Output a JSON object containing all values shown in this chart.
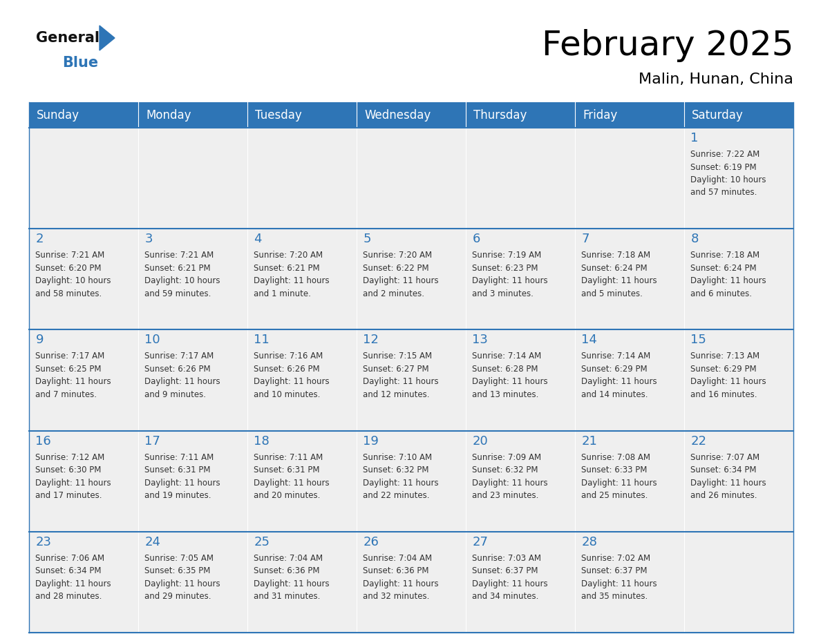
{
  "title": "February 2025",
  "subtitle": "Malin, Hunan, China",
  "header_color": "#2E75B6",
  "header_text_color": "#FFFFFF",
  "cell_bg_color": "#EFEFEF",
  "cell_bg_empty": "#E8E8E8",
  "day_number_color": "#2E75B6",
  "text_color": "#333333",
  "line_color": "#2E75B6",
  "border_color": "#2E75B6",
  "days_of_week": [
    "Sunday",
    "Monday",
    "Tuesday",
    "Wednesday",
    "Thursday",
    "Friday",
    "Saturday"
  ],
  "weeks": [
    [
      {
        "day": null,
        "info": null
      },
      {
        "day": null,
        "info": null
      },
      {
        "day": null,
        "info": null
      },
      {
        "day": null,
        "info": null
      },
      {
        "day": null,
        "info": null
      },
      {
        "day": null,
        "info": null
      },
      {
        "day": 1,
        "info": "Sunrise: 7:22 AM\nSunset: 6:19 PM\nDaylight: 10 hours\nand 57 minutes."
      }
    ],
    [
      {
        "day": 2,
        "info": "Sunrise: 7:21 AM\nSunset: 6:20 PM\nDaylight: 10 hours\nand 58 minutes."
      },
      {
        "day": 3,
        "info": "Sunrise: 7:21 AM\nSunset: 6:21 PM\nDaylight: 10 hours\nand 59 minutes."
      },
      {
        "day": 4,
        "info": "Sunrise: 7:20 AM\nSunset: 6:21 PM\nDaylight: 11 hours\nand 1 minute."
      },
      {
        "day": 5,
        "info": "Sunrise: 7:20 AM\nSunset: 6:22 PM\nDaylight: 11 hours\nand 2 minutes."
      },
      {
        "day": 6,
        "info": "Sunrise: 7:19 AM\nSunset: 6:23 PM\nDaylight: 11 hours\nand 3 minutes."
      },
      {
        "day": 7,
        "info": "Sunrise: 7:18 AM\nSunset: 6:24 PM\nDaylight: 11 hours\nand 5 minutes."
      },
      {
        "day": 8,
        "info": "Sunrise: 7:18 AM\nSunset: 6:24 PM\nDaylight: 11 hours\nand 6 minutes."
      }
    ],
    [
      {
        "day": 9,
        "info": "Sunrise: 7:17 AM\nSunset: 6:25 PM\nDaylight: 11 hours\nand 7 minutes."
      },
      {
        "day": 10,
        "info": "Sunrise: 7:17 AM\nSunset: 6:26 PM\nDaylight: 11 hours\nand 9 minutes."
      },
      {
        "day": 11,
        "info": "Sunrise: 7:16 AM\nSunset: 6:26 PM\nDaylight: 11 hours\nand 10 minutes."
      },
      {
        "day": 12,
        "info": "Sunrise: 7:15 AM\nSunset: 6:27 PM\nDaylight: 11 hours\nand 12 minutes."
      },
      {
        "day": 13,
        "info": "Sunrise: 7:14 AM\nSunset: 6:28 PM\nDaylight: 11 hours\nand 13 minutes."
      },
      {
        "day": 14,
        "info": "Sunrise: 7:14 AM\nSunset: 6:29 PM\nDaylight: 11 hours\nand 14 minutes."
      },
      {
        "day": 15,
        "info": "Sunrise: 7:13 AM\nSunset: 6:29 PM\nDaylight: 11 hours\nand 16 minutes."
      }
    ],
    [
      {
        "day": 16,
        "info": "Sunrise: 7:12 AM\nSunset: 6:30 PM\nDaylight: 11 hours\nand 17 minutes."
      },
      {
        "day": 17,
        "info": "Sunrise: 7:11 AM\nSunset: 6:31 PM\nDaylight: 11 hours\nand 19 minutes."
      },
      {
        "day": 18,
        "info": "Sunrise: 7:11 AM\nSunset: 6:31 PM\nDaylight: 11 hours\nand 20 minutes."
      },
      {
        "day": 19,
        "info": "Sunrise: 7:10 AM\nSunset: 6:32 PM\nDaylight: 11 hours\nand 22 minutes."
      },
      {
        "day": 20,
        "info": "Sunrise: 7:09 AM\nSunset: 6:32 PM\nDaylight: 11 hours\nand 23 minutes."
      },
      {
        "day": 21,
        "info": "Sunrise: 7:08 AM\nSunset: 6:33 PM\nDaylight: 11 hours\nand 25 minutes."
      },
      {
        "day": 22,
        "info": "Sunrise: 7:07 AM\nSunset: 6:34 PM\nDaylight: 11 hours\nand 26 minutes."
      }
    ],
    [
      {
        "day": 23,
        "info": "Sunrise: 7:06 AM\nSunset: 6:34 PM\nDaylight: 11 hours\nand 28 minutes."
      },
      {
        "day": 24,
        "info": "Sunrise: 7:05 AM\nSunset: 6:35 PM\nDaylight: 11 hours\nand 29 minutes."
      },
      {
        "day": 25,
        "info": "Sunrise: 7:04 AM\nSunset: 6:36 PM\nDaylight: 11 hours\nand 31 minutes."
      },
      {
        "day": 26,
        "info": "Sunrise: 7:04 AM\nSunset: 6:36 PM\nDaylight: 11 hours\nand 32 minutes."
      },
      {
        "day": 27,
        "info": "Sunrise: 7:03 AM\nSunset: 6:37 PM\nDaylight: 11 hours\nand 34 minutes."
      },
      {
        "day": 28,
        "info": "Sunrise: 7:02 AM\nSunset: 6:37 PM\nDaylight: 11 hours\nand 35 minutes."
      },
      {
        "day": null,
        "info": null
      }
    ]
  ],
  "logo_text_general": "General",
  "logo_text_blue": "Blue",
  "logo_color_general": "#111111",
  "logo_color_blue": "#2E75B6",
  "logo_triangle_color": "#2E75B6",
  "title_fontsize": 36,
  "subtitle_fontsize": 16,
  "header_fontsize": 12,
  "day_num_fontsize": 13,
  "info_fontsize": 8.5
}
